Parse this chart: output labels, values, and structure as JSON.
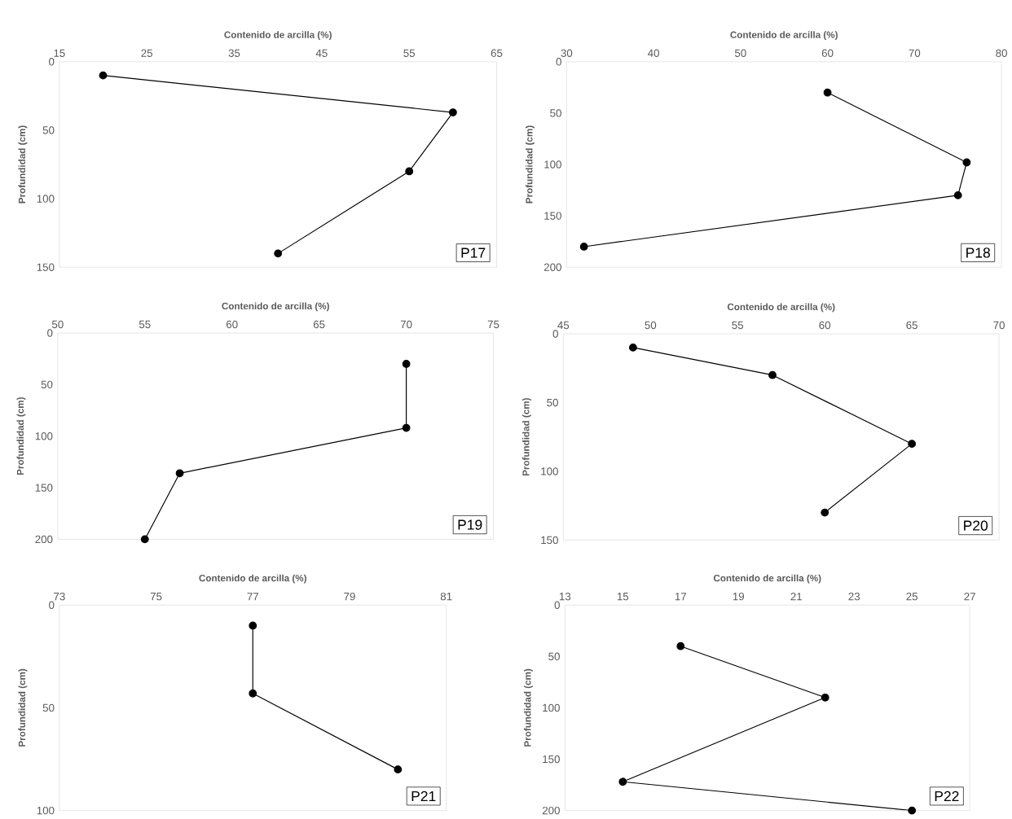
{
  "chart_data": [
    {
      "type": "line",
      "title": "P17",
      "xlabel": "Contenido de arcilla (%)",
      "ylabel": "Profundidad  (cm)",
      "xlim": [
        15,
        65
      ],
      "xticks": [
        15,
        25,
        35,
        45,
        55,
        65
      ],
      "ylim": [
        150,
        0
      ],
      "yticks": [
        0,
        50,
        100,
        150
      ],
      "marker": "circle",
      "line_style": "solid",
      "series": [
        {
          "color": "#000000",
          "x": [
            20,
            60,
            55,
            40
          ],
          "values": [
            10,
            37,
            80,
            140
          ]
        }
      ]
    },
    {
      "type": "line",
      "title": "P18",
      "xlabel": "Contenido de arcilla (%)",
      "ylabel": "Profundidad  (cm)",
      "xlim": [
        30,
        80
      ],
      "xticks": [
        30,
        40,
        50,
        60,
        70,
        80
      ],
      "ylim": [
        200,
        0
      ],
      "yticks": [
        0,
        50,
        100,
        150,
        200
      ],
      "marker": "circle",
      "line_style": "solid",
      "series": [
        {
          "color": "#000000",
          "x": [
            60,
            76,
            75,
            32
          ],
          "values": [
            30,
            98,
            130,
            180
          ]
        }
      ]
    },
    {
      "type": "line",
      "title": "P19",
      "xlabel": "Contenido de arcilla (%)",
      "ylabel": "Profundidad  (cm)",
      "xlim": [
        50,
        75
      ],
      "xticks": [
        50,
        55,
        60,
        65,
        70,
        75
      ],
      "ylim": [
        200,
        0
      ],
      "yticks": [
        0,
        50,
        100,
        150,
        200
      ],
      "marker": "circle",
      "line_style": "solid",
      "series": [
        {
          "color": "#000000",
          "x": [
            70,
            70,
            57,
            55
          ],
          "values": [
            30,
            92,
            136,
            200
          ]
        }
      ]
    },
    {
      "type": "line",
      "title": "P20",
      "xlabel": "Contenido de arcilla (%)",
      "ylabel": "Profundidad  (cm)",
      "xlim": [
        45,
        70
      ],
      "xticks": [
        45,
        50,
        55,
        60,
        65,
        70
      ],
      "ylim": [
        150,
        0
      ],
      "yticks": [
        0,
        50,
        100,
        150
      ],
      "marker": "circle",
      "line_style": "solid",
      "series": [
        {
          "color": "#000000",
          "x": [
            49,
            57,
            65,
            60
          ],
          "values": [
            10,
            30,
            80,
            130
          ]
        }
      ]
    },
    {
      "type": "line",
      "title": "P21",
      "xlabel": "Contenido de arcilla (%)",
      "ylabel": "Profundidad  (cm)",
      "xlim": [
        73,
        81
      ],
      "xticks": [
        73,
        75,
        77,
        79,
        81
      ],
      "ylim": [
        100,
        0
      ],
      "yticks": [
        0,
        50,
        100
      ],
      "marker": "circle",
      "line_style": "solid",
      "series": [
        {
          "color": "#000000",
          "x": [
            77,
            77,
            80
          ],
          "values": [
            10,
            43,
            80
          ]
        }
      ]
    },
    {
      "type": "line",
      "title": "P22",
      "xlabel": "Contenido de arcilla (%)",
      "ylabel": "Profundidad  (cm)",
      "xlim": [
        13,
        27
      ],
      "xticks": [
        13,
        15,
        17,
        19,
        21,
        23,
        25,
        27
      ],
      "ylim": [
        200,
        0
      ],
      "yticks": [
        0,
        50,
        100,
        150,
        200
      ],
      "marker": "circle",
      "line_style": "solid",
      "series": [
        {
          "color": "#000000",
          "x": [
            17,
            22,
            15,
            25
          ],
          "values": [
            40,
            90,
            172,
            200
          ]
        }
      ]
    }
  ]
}
